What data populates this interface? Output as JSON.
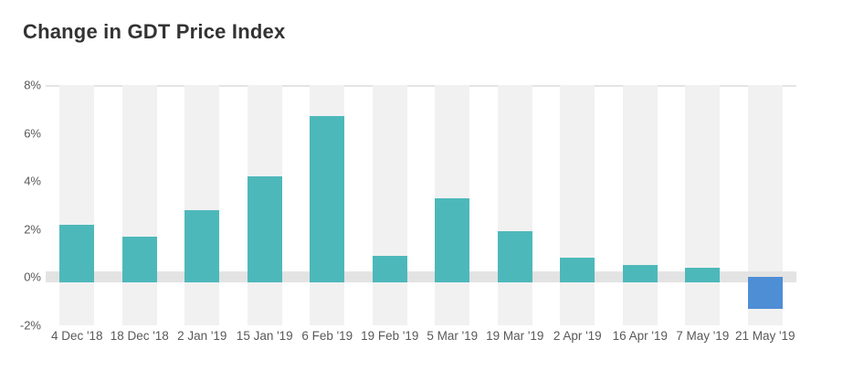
{
  "chart_data": {
    "type": "bar",
    "title": "Change in GDT Price Index",
    "xlabel": "",
    "ylabel": "",
    "categories": [
      "4 Dec '18",
      "18 Dec '18",
      "2 Jan '19",
      "15 Jan '19",
      "6 Feb '19",
      "19 Feb '19",
      "5 Mar '19",
      "19 Mar '19",
      "2 Apr '19",
      "16 Apr '19",
      "7 May '19",
      "21 May '19"
    ],
    "values": [
      2.2,
      1.7,
      2.8,
      4.2,
      6.7,
      0.9,
      3.3,
      1.9,
      0.8,
      0.5,
      0.4,
      -1.2
    ],
    "ylim": [
      -2,
      8
    ],
    "yticks": [
      8,
      6,
      4,
      2,
      0,
      -2
    ],
    "ytick_format": "{v}%",
    "legend": "none",
    "grid": "vertical-column-stripes-per-category",
    "colors": {
      "positive_bar": "#4db8ba",
      "negative_bar": "#4e8ed5",
      "column_stripe": "#f1f1f1",
      "zero_band": "#e3e3e3",
      "top_gridline": "#e4e4e4",
      "title_text": "#333333",
      "axis_text": "#58595b"
    }
  }
}
